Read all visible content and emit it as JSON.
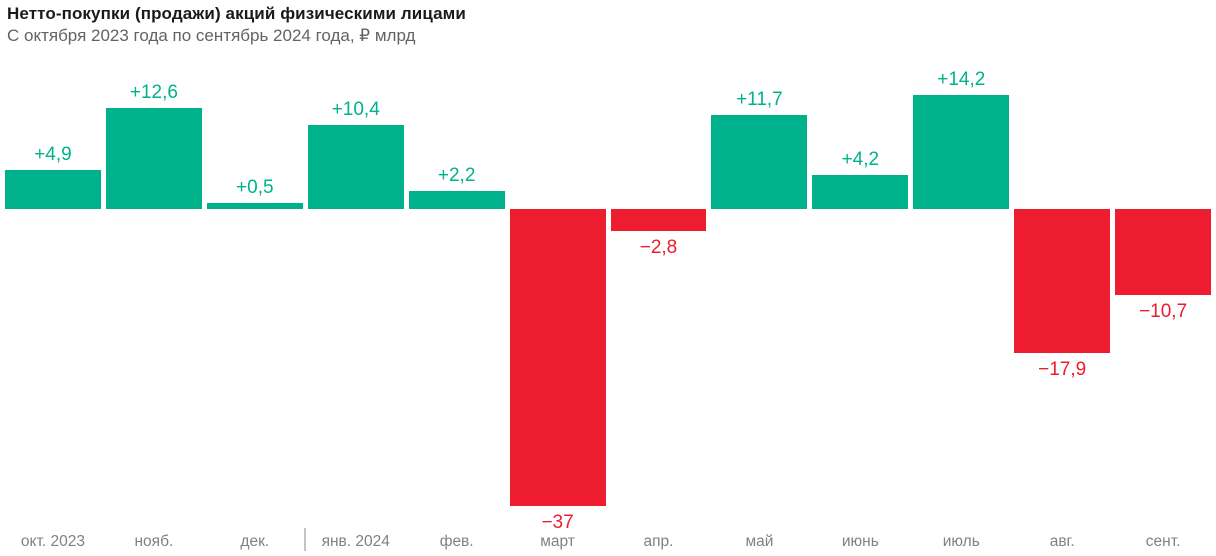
{
  "header": {
    "title": "Нетто-покупки (продажи) акций физическими лицами",
    "subtitle": "С октября 2023 года по сентябрь 2024 года, ₽ млрд"
  },
  "chart_data": {
    "type": "bar",
    "title": "Нетто-покупки (продажи) акций физическими лицами",
    "subtitle": "С октября 2023 года по сентябрь 2024 года, ₽ млрд",
    "unit": "₽ млрд",
    "categories": [
      "окт. 2023",
      "нояб.",
      "дек.",
      "янв. 2024",
      "фев.",
      "март",
      "апр.",
      "май",
      "июнь",
      "июль",
      "авг.",
      "сент."
    ],
    "values": [
      4.9,
      12.6,
      0.5,
      10.4,
      2.2,
      -37,
      -2.8,
      11.7,
      4.2,
      14.2,
      -17.9,
      -10.7
    ],
    "value_labels": [
      "+4,9",
      "+12,6",
      "+0,5",
      "+10,4",
      "+2,2",
      "−37",
      "−2,8",
      "+11,7",
      "+4,2",
      "+14,2",
      "−17,9",
      "−10,7"
    ],
    "ylim": [
      -37,
      14.2
    ],
    "grid": false,
    "legend": false,
    "colors": {
      "positive": "#00B28C",
      "negative": "#ED1C2E"
    },
    "year_divider_after_index": 2
  }
}
